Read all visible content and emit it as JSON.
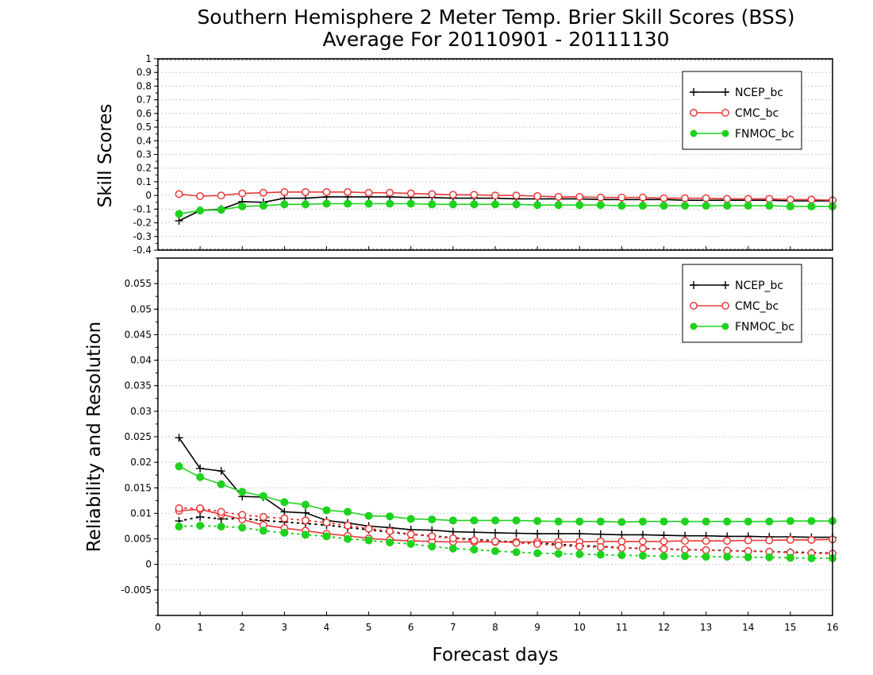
{
  "title": {
    "line1": "Southern Hemisphere 2 Meter Temp. Brier Skill Scores (BSS)",
    "line2": "Average For 20110901 - 20111130"
  },
  "xlabel": "Forecast days",
  "x_ticks": [
    0,
    1,
    2,
    3,
    4,
    5,
    6,
    7,
    8,
    9,
    10,
    11,
    12,
    13,
    14,
    15,
    16
  ],
  "colors": {
    "NCEP_bc": "#000000",
    "CMC_bc": "#e83838",
    "FNMOC_bc": "#1ed21e"
  },
  "chart_data": [
    {
      "type": "line",
      "name": "skill-scores",
      "ylabel": "Skill Scores",
      "xlim": [
        0,
        16
      ],
      "ylim": [
        -0.4,
        1
      ],
      "y_ticks": [
        "1",
        "0.9",
        "0.8",
        "0.7",
        "0.6",
        "0.5",
        "0.4",
        "0.3",
        "0.2",
        "0.1",
        "0",
        "-0.1",
        "-0.2",
        "-0.3",
        "-0.4"
      ],
      "grid": true,
      "legend": "top-right",
      "legend_entries": [
        "NCEP_bc",
        "CMC_bc",
        "FNMOC_bc"
      ],
      "x": [
        0.5,
        1,
        1.5,
        2,
        2.5,
        3,
        3.5,
        4,
        4.5,
        5,
        5.5,
        6,
        6.5,
        7,
        7.5,
        8,
        8.5,
        9,
        9.5,
        10,
        10.5,
        11,
        11.5,
        12,
        12.5,
        13,
        13.5,
        14,
        14.5,
        15,
        15.5,
        16
      ],
      "series": [
        {
          "name": "NCEP_bc",
          "marker": "plus",
          "values": [
            -0.185,
            -0.11,
            -0.1,
            -0.045,
            -0.05,
            -0.02,
            -0.02,
            -0.01,
            -0.01,
            -0.01,
            -0.01,
            -0.015,
            -0.015,
            -0.02,
            -0.02,
            -0.02,
            -0.025,
            -0.025,
            -0.025,
            -0.025,
            -0.03,
            -0.03,
            -0.03,
            -0.03,
            -0.035,
            -0.035,
            -0.035,
            -0.035,
            -0.035,
            -0.04,
            -0.04,
            -0.04
          ]
        },
        {
          "name": "CMC_bc",
          "marker": "open-circle",
          "values": [
            0.01,
            -0.005,
            0,
            0.015,
            0.02,
            0.025,
            0.025,
            0.025,
            0.025,
            0.02,
            0.02,
            0.015,
            0.01,
            0.005,
            0.005,
            0,
            0,
            -0.005,
            -0.01,
            -0.01,
            -0.015,
            -0.015,
            -0.015,
            -0.02,
            -0.02,
            -0.02,
            -0.025,
            -0.025,
            -0.025,
            -0.03,
            -0.03,
            -0.035
          ]
        },
        {
          "name": "FNMOC_bc",
          "marker": "filled-circle",
          "values": [
            -0.135,
            -0.11,
            -0.105,
            -0.08,
            -0.075,
            -0.065,
            -0.065,
            -0.06,
            -0.06,
            -0.06,
            -0.06,
            -0.06,
            -0.065,
            -0.065,
            -0.065,
            -0.065,
            -0.065,
            -0.07,
            -0.07,
            -0.07,
            -0.07,
            -0.075,
            -0.075,
            -0.075,
            -0.075,
            -0.075,
            -0.075,
            -0.075,
            -0.075,
            -0.08,
            -0.08,
            -0.08
          ]
        }
      ]
    },
    {
      "type": "line",
      "name": "reliability-resolution",
      "ylabel": "Reliability and Resolution",
      "xlim": [
        0,
        16
      ],
      "ylim": [
        -0.01,
        0.06
      ],
      "y_ticks": [
        "0.055",
        "0.05",
        "0.045",
        "0.04",
        "0.035",
        "0.03",
        "0.025",
        "0.02",
        "0.015",
        "0.01",
        "0.005",
        "0",
        "-0.005"
      ],
      "grid": true,
      "legend": "top-right",
      "legend_entries": [
        "NCEP_bc",
        "CMC_bc",
        "FNMOC_bc"
      ],
      "x": [
        0.5,
        1,
        1.5,
        2,
        2.5,
        3,
        3.5,
        4,
        4.5,
        5,
        5.5,
        6,
        6.5,
        7,
        7.5,
        8,
        8.5,
        9,
        9.5,
        10,
        10.5,
        11,
        11.5,
        12,
        12.5,
        13,
        13.5,
        14,
        14.5,
        15,
        15.5,
        16
      ],
      "series": [
        {
          "name": "NCEP_bc",
          "marker": "plus",
          "style": "solid",
          "values": [
            0.0248,
            0.0188,
            0.0183,
            0.0133,
            0.0132,
            0.0103,
            0.0101,
            0.0086,
            0.0081,
            0.0075,
            0.0072,
            0.0068,
            0.0067,
            0.0064,
            0.0063,
            0.0062,
            0.0061,
            0.006,
            0.006,
            0.006,
            0.0059,
            0.0058,
            0.0058,
            0.0057,
            0.0056,
            0.0056,
            0.0055,
            0.0055,
            0.0054,
            0.0054,
            0.0053,
            0.0053
          ]
        },
        {
          "name": "NCEP_bc",
          "marker": "plus",
          "style": "dotted",
          "values": [
            0.0085,
            0.0093,
            0.0089,
            0.009,
            0.0086,
            0.0083,
            0.008,
            0.0077,
            0.0072,
            0.0068,
            0.0063,
            0.0059,
            0.0056,
            0.0052,
            0.0049,
            0.0046,
            0.0044,
            0.0042,
            0.0039,
            0.0037,
            0.0035,
            0.0033,
            0.0031,
            0.003,
            0.0029,
            0.0028,
            0.0027,
            0.0026,
            0.0025,
            0.0024,
            0.0023,
            0.0022
          ]
        },
        {
          "name": "CMC_bc",
          "marker": "open-circle",
          "style": "solid",
          "values": [
            0.0105,
            0.0108,
            0.0098,
            0.0088,
            0.0077,
            0.0071,
            0.0066,
            0.006,
            0.0056,
            0.0051,
            0.0048,
            0.0046,
            0.0045,
            0.0044,
            0.0044,
            0.0044,
            0.0044,
            0.0044,
            0.0044,
            0.0044,
            0.0045,
            0.0045,
            0.0045,
            0.0045,
            0.0046,
            0.0046,
            0.0046,
            0.0047,
            0.0047,
            0.0048,
            0.0048,
            0.0049
          ]
        },
        {
          "name": "CMC_bc",
          "marker": "open-circle",
          "style": "dotted",
          "values": [
            0.011,
            0.011,
            0.0103,
            0.0097,
            0.0093,
            0.009,
            0.0086,
            0.0082,
            0.0076,
            0.007,
            0.0065,
            0.0059,
            0.0055,
            0.0051,
            0.0047,
            0.0045,
            0.0042,
            0.004,
            0.0037,
            0.0035,
            0.0034,
            0.0032,
            0.0031,
            0.003,
            0.0029,
            0.0028,
            0.0027,
            0.0026,
            0.0025,
            0.0023,
            0.0022,
            0.0021
          ]
        },
        {
          "name": "FNMOC_bc",
          "marker": "filled-circle",
          "style": "solid",
          "values": [
            0.0192,
            0.0171,
            0.0157,
            0.0142,
            0.0134,
            0.0122,
            0.0117,
            0.0106,
            0.0103,
            0.0095,
            0.0094,
            0.0089,
            0.0088,
            0.0086,
            0.0086,
            0.0086,
            0.0086,
            0.0085,
            0.0084,
            0.0084,
            0.0084,
            0.0083,
            0.0084,
            0.0084,
            0.0084,
            0.0084,
            0.0084,
            0.0084,
            0.0084,
            0.0085,
            0.0085,
            0.0085
          ]
        },
        {
          "name": "FNMOC_bc",
          "marker": "filled-circle",
          "style": "dotted",
          "values": [
            0.0074,
            0.0076,
            0.0074,
            0.0072,
            0.0066,
            0.0062,
            0.0058,
            0.0055,
            0.005,
            0.0047,
            0.0043,
            0.004,
            0.0035,
            0.0031,
            0.0029,
            0.0026,
            0.0024,
            0.0022,
            0.0021,
            0.002,
            0.0019,
            0.0018,
            0.0017,
            0.0016,
            0.0016,
            0.0015,
            0.0015,
            0.0014,
            0.0014,
            0.0013,
            0.0012,
            0.0012
          ]
        }
      ]
    }
  ]
}
